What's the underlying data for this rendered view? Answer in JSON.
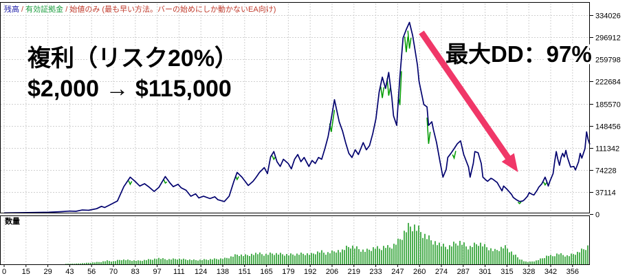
{
  "header": {
    "series_balance": "残高",
    "sep1": " / ",
    "series_equity": "有効証拠金",
    "sep2": " / ",
    "mode": "始値のみ (最も早い方法。バーの始めにしか動かないEA向け)"
  },
  "volume_panel": {
    "label": "数量"
  },
  "annotations": {
    "line1": "複利（リスク20%）",
    "line2": "$2,000 → $115,000",
    "max_dd": "最大DD：97%",
    "text_color": "#ec3a6c",
    "arrow_color": "#f03768"
  },
  "colors": {
    "balance_line": "#00006e",
    "equity_line": "#009a00",
    "volume_bar": "#4caf50",
    "grid": "#cfcfcf",
    "border": "#000000"
  },
  "chart_data": {
    "type": "line",
    "title": "",
    "xlabel": "",
    "ylabel": "",
    "x_tick_labels": [
      0,
      15,
      29,
      43,
      56,
      70,
      83,
      97,
      111,
      124,
      138,
      151,
      165,
      179,
      192,
      206,
      219,
      233,
      247,
      260,
      274,
      287,
      301,
      315,
      328,
      342,
      356
    ],
    "y_tick_labels": [
      334026,
      296912,
      259798,
      222684,
      185570,
      148456,
      111342,
      74228,
      37114,
      0
    ],
    "ylim": [
      0,
      352000
    ],
    "xlim": [
      0,
      367
    ],
    "grid": "dashed",
    "series": [
      {
        "name": "残高",
        "color": "#00006e",
        "points": [
          [
            0,
            2000
          ],
          [
            15,
            2500
          ],
          [
            28,
            3000
          ],
          [
            36,
            4000
          ],
          [
            41,
            5000
          ],
          [
            45,
            4600
          ],
          [
            49,
            6800
          ],
          [
            53,
            6400
          ],
          [
            58,
            9000
          ],
          [
            61,
            13000
          ],
          [
            63,
            11000
          ],
          [
            66,
            15000
          ],
          [
            71,
            22000
          ],
          [
            75,
            46000
          ],
          [
            79,
            62000
          ],
          [
            82,
            55000
          ],
          [
            85,
            47000
          ],
          [
            88,
            51000
          ],
          [
            91,
            45000
          ],
          [
            94,
            38000
          ],
          [
            97,
            45000
          ],
          [
            101,
            63000
          ],
          [
            104,
            52000
          ],
          [
            106,
            46000
          ],
          [
            109,
            50000
          ],
          [
            111,
            44000
          ],
          [
            114,
            40000
          ],
          [
            117,
            30000
          ],
          [
            120,
            34000
          ],
          [
            122,
            27000
          ],
          [
            125,
            30000
          ],
          [
            129,
            26000
          ],
          [
            132,
            29000
          ],
          [
            134,
            24000
          ],
          [
            138,
            21000
          ],
          [
            141,
            30000
          ],
          [
            144,
            55000
          ],
          [
            146,
            70000
          ],
          [
            149,
            62000
          ],
          [
            151,
            55000
          ],
          [
            153,
            48000
          ],
          [
            156,
            55000
          ],
          [
            158,
            62000
          ],
          [
            160,
            70000
          ],
          [
            163,
            78000
          ],
          [
            165,
            68000
          ],
          [
            167,
            96000
          ],
          [
            169,
            105000
          ],
          [
            171,
            88000
          ],
          [
            173,
            80000
          ],
          [
            175,
            92000
          ],
          [
            178,
            85000
          ],
          [
            180,
            76000
          ],
          [
            182,
            92000
          ],
          [
            184,
            100000
          ],
          [
            186,
            88000
          ],
          [
            188,
            95000
          ],
          [
            191,
            80000
          ],
          [
            193,
            90000
          ],
          [
            195,
            85000
          ],
          [
            197,
            95000
          ],
          [
            199,
            92000
          ],
          [
            201,
            110000
          ],
          [
            203,
            130000
          ],
          [
            205,
            160000
          ],
          [
            207,
            192000
          ],
          [
            210,
            155000
          ],
          [
            212,
            140000
          ],
          [
            214,
            120000
          ],
          [
            216,
            102000
          ],
          [
            218,
            95000
          ],
          [
            220,
            108000
          ],
          [
            222,
            100000
          ],
          [
            225,
            120000
          ],
          [
            227,
            108000
          ],
          [
            229,
            115000
          ],
          [
            231,
            135000
          ],
          [
            233,
            160000
          ],
          [
            235,
            205000
          ],
          [
            237,
            230000
          ],
          [
            239,
            211000
          ],
          [
            241,
            238000
          ],
          [
            243,
            195000
          ],
          [
            244,
            165000
          ],
          [
            246,
            149000
          ],
          [
            248,
            230000
          ],
          [
            250,
            296000
          ],
          [
            252,
            310000
          ],
          [
            254,
            322000
          ],
          [
            256,
            300000
          ],
          [
            257,
            284000
          ],
          [
            259,
            250000
          ],
          [
            260,
            223000
          ],
          [
            263,
            184000
          ],
          [
            265,
            180000
          ],
          [
            266,
            149000
          ],
          [
            268,
            155000
          ],
          [
            269,
            142000
          ],
          [
            271,
            120000
          ],
          [
            273,
            90000
          ],
          [
            275,
            62000
          ],
          [
            277,
            75000
          ],
          [
            278,
            95000
          ],
          [
            280,
            102000
          ],
          [
            282,
            110000
          ],
          [
            284,
            118000
          ],
          [
            286,
            123000
          ],
          [
            288,
            100000
          ],
          [
            291,
            79000
          ],
          [
            292,
            62000
          ],
          [
            294,
            85000
          ],
          [
            295,
            105000
          ],
          [
            297,
            103000
          ],
          [
            299,
            85000
          ],
          [
            300,
            62000
          ],
          [
            302,
            57000
          ],
          [
            303,
            55000
          ],
          [
            305,
            60000
          ],
          [
            306,
            59000
          ],
          [
            309,
            53000
          ],
          [
            310,
            48000
          ],
          [
            312,
            39000
          ],
          [
            313,
            47000
          ],
          [
            315,
            42000
          ],
          [
            316,
            39000
          ],
          [
            318,
            33000
          ],
          [
            319,
            28000
          ],
          [
            321,
            24000
          ],
          [
            323,
            21000
          ],
          [
            325,
            22000
          ],
          [
            326,
            24000
          ],
          [
            328,
            30000
          ],
          [
            329,
            36000
          ],
          [
            331,
            33000
          ],
          [
            332,
            32000
          ],
          [
            334,
            40000
          ],
          [
            335,
            45000
          ],
          [
            337,
            51000
          ],
          [
            339,
            62000
          ],
          [
            340,
            55000
          ],
          [
            341,
            47000
          ],
          [
            342,
            55000
          ],
          [
            344,
            68000
          ],
          [
            345,
            88000
          ],
          [
            346,
            105000
          ],
          [
            347,
            92000
          ],
          [
            348,
            82000
          ],
          [
            349,
            95000
          ],
          [
            350,
            102000
          ],
          [
            351,
            96000
          ],
          [
            352,
            107000
          ],
          [
            353,
            95000
          ],
          [
            355,
            79000
          ],
          [
            357,
            80000
          ],
          [
            358,
            74000
          ],
          [
            360,
            88000
          ],
          [
            361,
            102000
          ],
          [
            362,
            94000
          ],
          [
            364,
            110000
          ],
          [
            365,
            138000
          ],
          [
            366,
            125000
          ],
          [
            367,
            117000
          ]
        ]
      },
      {
        "name": "有効証拠金",
        "color": "#009a00",
        "dip_segments": [
          [
            [
              78,
              56000
            ],
            [
              79,
              50000
            ],
            [
              80,
              55000
            ]
          ],
          [
            [
              100,
              58000
            ],
            [
              101,
              52000
            ],
            [
              102,
              54000
            ]
          ],
          [
            [
              145,
              64000
            ],
            [
              146,
              58000
            ],
            [
              147,
              63000
            ]
          ],
          [
            [
              168,
              98000
            ],
            [
              169,
              92000
            ],
            [
              170,
              96000
            ]
          ],
          [
            [
              204,
              152000
            ],
            [
              205,
              138000
            ],
            [
              207,
              175000
            ]
          ],
          [
            [
              236,
              214000
            ],
            [
              237,
              195000
            ],
            [
              238,
              213000
            ]
          ],
          [
            [
              240,
              228000
            ],
            [
              241,
              199000
            ],
            [
              242,
              212000
            ]
          ],
          [
            [
              247,
              198000
            ],
            [
              248,
              183000
            ],
            [
              249,
              240000
            ]
          ],
          [
            [
              251,
              298000
            ],
            [
              252,
              272000
            ],
            [
              253,
              298000
            ]
          ],
          [
            [
              253,
              308000
            ],
            [
              254,
              278000
            ],
            [
              255,
              296000
            ]
          ],
          [
            [
              265,
              162000
            ],
            [
              266,
              118000
            ],
            [
              267,
              138000
            ]
          ],
          [
            [
              281,
              100000
            ],
            [
              282,
              94000
            ],
            [
              283,
              106000
            ]
          ],
          [
            [
              322,
              20000
            ],
            [
              323,
              17500
            ],
            [
              324,
              20500
            ]
          ],
          [
            [
              338,
              54000
            ],
            [
              339,
              49000
            ],
            [
              340,
              53000
            ]
          ]
        ]
      }
    ],
    "volume": {
      "name": "数量",
      "color": "#4caf50",
      "unit": "relative_height_px",
      "envelope": [
        [
          0,
          0
        ],
        [
          34,
          0
        ],
        [
          37,
          1
        ],
        [
          44,
          1
        ],
        [
          50,
          2
        ],
        [
          55,
          3
        ],
        [
          60,
          4
        ],
        [
          64,
          6
        ],
        [
          68,
          5
        ],
        [
          73,
          8
        ],
        [
          78,
          7
        ],
        [
          84,
          6
        ],
        [
          90,
          8
        ],
        [
          96,
          10
        ],
        [
          102,
          8
        ],
        [
          108,
          9
        ],
        [
          114,
          8
        ],
        [
          120,
          7
        ],
        [
          126,
          8
        ],
        [
          132,
          9
        ],
        [
          138,
          10
        ],
        [
          142,
          13
        ],
        [
          146,
          17
        ],
        [
          150,
          15
        ],
        [
          154,
          17
        ],
        [
          158,
          18
        ],
        [
          163,
          16
        ],
        [
          168,
          18
        ],
        [
          173,
          17
        ],
        [
          178,
          16
        ],
        [
          183,
          17
        ],
        [
          188,
          18
        ],
        [
          192,
          17
        ],
        [
          195,
          20
        ],
        [
          198,
          22
        ],
        [
          201,
          19
        ],
        [
          205,
          21
        ],
        [
          208,
          24
        ],
        [
          211,
          22
        ],
        [
          214,
          27
        ],
        [
          217,
          30
        ],
        [
          220,
          27
        ],
        [
          223,
          24
        ],
        [
          226,
          22
        ],
        [
          229,
          25
        ],
        [
          232,
          28
        ],
        [
          235,
          26
        ],
        [
          238,
          30
        ],
        [
          241,
          28
        ],
        [
          244,
          33
        ],
        [
          247,
          40
        ],
        [
          249,
          48
        ],
        [
          251,
          57
        ],
        [
          253,
          63
        ],
        [
          255,
          66
        ],
        [
          257,
          64
        ],
        [
          259,
          60
        ],
        [
          261,
          55
        ],
        [
          263,
          50
        ],
        [
          265,
          46
        ],
        [
          267,
          42
        ],
        [
          269,
          39
        ],
        [
          271,
          36
        ],
        [
          273,
          32
        ],
        [
          275,
          30
        ],
        [
          277,
          28
        ],
        [
          279,
          30
        ],
        [
          281,
          33
        ],
        [
          283,
          35
        ],
        [
          285,
          37
        ],
        [
          287,
          34
        ],
        [
          289,
          30
        ],
        [
          291,
          28
        ],
        [
          293,
          31
        ],
        [
          295,
          33
        ],
        [
          297,
          36
        ],
        [
          299,
          33
        ],
        [
          301,
          30
        ],
        [
          303,
          28
        ],
        [
          305,
          25
        ],
        [
          307,
          23
        ],
        [
          309,
          25
        ],
        [
          311,
          28
        ],
        [
          313,
          30
        ],
        [
          315,
          27
        ],
        [
          317,
          22
        ],
        [
          319,
          17
        ],
        [
          321,
          13
        ],
        [
          323,
          9
        ],
        [
          325,
          6
        ],
        [
          327,
          4
        ],
        [
          329,
          4
        ],
        [
          331,
          5
        ],
        [
          333,
          6
        ],
        [
          335,
          8
        ],
        [
          337,
          10
        ],
        [
          339,
          13
        ],
        [
          341,
          15
        ],
        [
          343,
          13
        ],
        [
          345,
          16
        ],
        [
          347,
          18
        ],
        [
          349,
          16
        ],
        [
          351,
          15
        ],
        [
          353,
          14
        ],
        [
          355,
          16
        ],
        [
          357,
          18
        ],
        [
          359,
          20
        ],
        [
          361,
          23
        ],
        [
          363,
          26
        ],
        [
          365,
          30
        ],
        [
          367,
          32
        ]
      ]
    }
  }
}
